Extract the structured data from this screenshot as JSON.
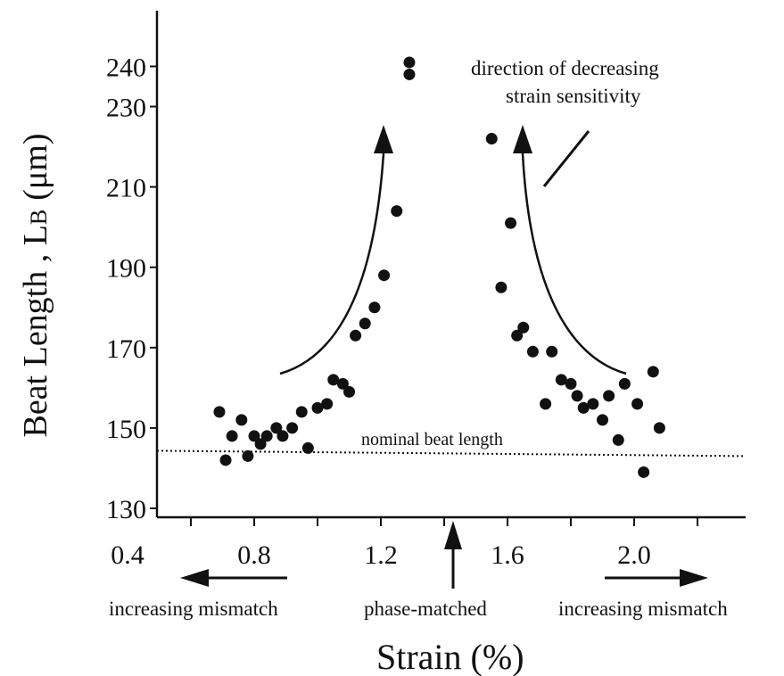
{
  "chart_data": {
    "type": "scatter",
    "title": "",
    "xlabel": "Strain (%)",
    "ylabel_main": "Beat Length , L",
    "ylabel_sub": "B",
    "ylabel_unit": "(μm)",
    "xlim": [
      0.4,
      2.4
    ],
    "ylim": [
      130,
      240
    ],
    "xticks": [
      {
        "value": 0.4,
        "label": "0.4"
      },
      {
        "value": 0.8,
        "label": "0.8"
      },
      {
        "value": 1.2,
        "label": "1.2"
      },
      {
        "value": 1.6,
        "label": "1.6"
      },
      {
        "value": 2.0,
        "label": "2.0"
      }
    ],
    "yticks": [
      {
        "value": 130,
        "label": "130"
      },
      {
        "value": 150,
        "label": "150"
      },
      {
        "value": 170,
        "label": "170"
      },
      {
        "value": 190,
        "label": "190"
      },
      {
        "value": 210,
        "label": "210"
      },
      {
        "value": 230,
        "label": "230"
      },
      {
        "value": 240,
        "label": "240"
      }
    ],
    "grid": false,
    "nominal_beat_length": 143,
    "points": [
      {
        "x": 0.69,
        "y": 154
      },
      {
        "x": 0.71,
        "y": 142
      },
      {
        "x": 0.73,
        "y": 148
      },
      {
        "x": 0.76,
        "y": 152
      },
      {
        "x": 0.78,
        "y": 143
      },
      {
        "x": 0.8,
        "y": 148
      },
      {
        "x": 0.82,
        "y": 146
      },
      {
        "x": 0.84,
        "y": 148
      },
      {
        "x": 0.87,
        "y": 150
      },
      {
        "x": 0.89,
        "y": 148
      },
      {
        "x": 0.92,
        "y": 150
      },
      {
        "x": 0.95,
        "y": 154
      },
      {
        "x": 0.97,
        "y": 145
      },
      {
        "x": 1.0,
        "y": 155
      },
      {
        "x": 1.03,
        "y": 156
      },
      {
        "x": 1.05,
        "y": 162
      },
      {
        "x": 1.08,
        "y": 161
      },
      {
        "x": 1.1,
        "y": 159
      },
      {
        "x": 1.12,
        "y": 173
      },
      {
        "x": 1.15,
        "y": 176
      },
      {
        "x": 1.18,
        "y": 180
      },
      {
        "x": 1.21,
        "y": 188
      },
      {
        "x": 1.25,
        "y": 204
      },
      {
        "x": 1.29,
        "y": 241
      },
      {
        "x": 1.29,
        "y": 238
      },
      {
        "x": 1.55,
        "y": 222
      },
      {
        "x": 1.58,
        "y": 185
      },
      {
        "x": 1.61,
        "y": 201
      },
      {
        "x": 1.63,
        "y": 173
      },
      {
        "x": 1.65,
        "y": 175
      },
      {
        "x": 1.68,
        "y": 169
      },
      {
        "x": 1.72,
        "y": 156
      },
      {
        "x": 1.74,
        "y": 169
      },
      {
        "x": 1.77,
        "y": 162
      },
      {
        "x": 1.8,
        "y": 161
      },
      {
        "x": 1.82,
        "y": 158
      },
      {
        "x": 1.84,
        "y": 155
      },
      {
        "x": 1.87,
        "y": 156
      },
      {
        "x": 1.9,
        "y": 152
      },
      {
        "x": 1.92,
        "y": 158
      },
      {
        "x": 1.95,
        "y": 147
      },
      {
        "x": 1.97,
        "y": 161
      },
      {
        "x": 2.01,
        "y": 156
      },
      {
        "x": 2.03,
        "y": 139
      },
      {
        "x": 2.06,
        "y": 164
      },
      {
        "x": 2.08,
        "y": 150
      }
    ]
  },
  "annotations": {
    "nominal_label": "nominal beat length",
    "direction_line1": "direction of decreasing",
    "direction_line2": "strain sensitivity",
    "left_mismatch": "increasing mismatch",
    "phase_matched": "phase-matched",
    "right_mismatch": "increasing mismatch"
  }
}
